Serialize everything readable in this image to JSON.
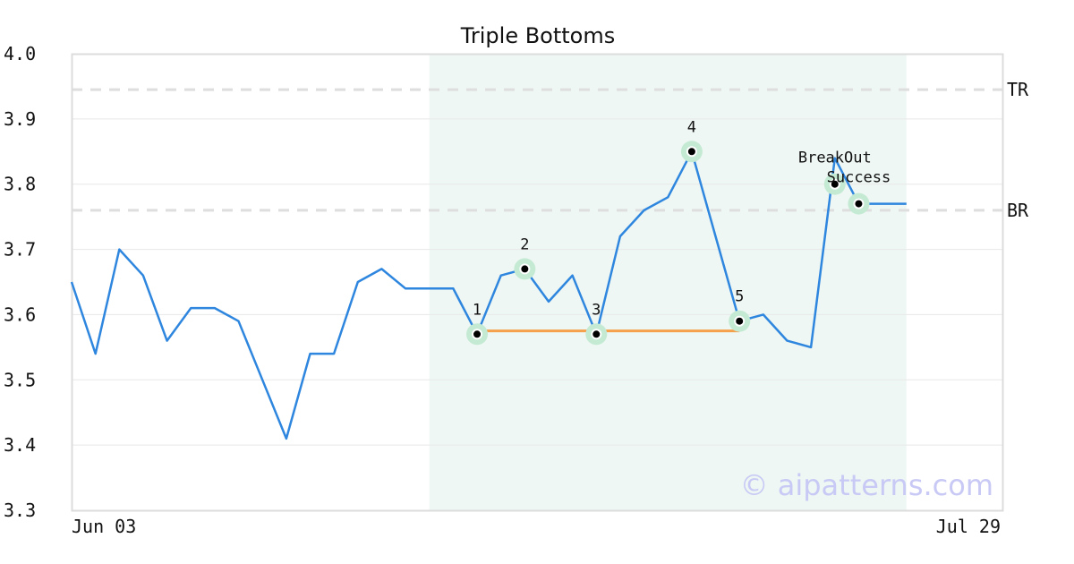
{
  "chart_data": {
    "type": "line",
    "title": "Triple Bottoms",
    "ylim": [
      3.3,
      4.0
    ],
    "yticks": [
      "3.3",
      "3.4",
      "3.5",
      "3.6",
      "3.7",
      "3.8",
      "3.9",
      "4.0"
    ],
    "xtick_labels": [
      "Jun 03",
      "Jul 29"
    ],
    "grid": true,
    "series": [
      {
        "values": [
          3.65,
          3.54,
          3.7,
          3.66,
          3.56,
          3.61,
          3.61,
          3.59,
          3.5,
          3.41,
          3.54,
          3.54,
          3.65,
          3.67,
          3.64,
          3.64,
          3.64,
          3.57,
          3.66,
          3.67,
          3.62,
          3.66,
          3.57,
          3.72,
          3.76,
          3.78,
          3.85,
          3.72,
          3.59,
          3.6,
          3.56,
          3.55,
          3.84,
          3.77,
          3.77,
          3.77
        ],
        "color": "#2e86de"
      }
    ],
    "pattern_region": {
      "start_index": 15,
      "end_index": 35,
      "color": "#eef7f3"
    },
    "pattern_points": [
      {
        "label": "1",
        "index": 17,
        "value": 3.57
      },
      {
        "label": "2",
        "index": 19,
        "value": 3.67
      },
      {
        "label": "3",
        "index": 22,
        "value": 3.57
      },
      {
        "label": "4",
        "index": 26,
        "value": 3.85
      },
      {
        "label": "5",
        "index": 28,
        "value": 3.59
      }
    ],
    "support_line": {
      "start_index": 17,
      "end_index": 28,
      "value": 3.575,
      "color": "#f5a04a"
    },
    "reference_lines": [
      {
        "label": "TR",
        "value": 3.945
      },
      {
        "label": "BR",
        "value": 3.76
      }
    ],
    "annotations": [
      {
        "text": "BreakOut",
        "index": 32,
        "value": 3.8
      },
      {
        "text": "Success",
        "index": 33,
        "value": 3.77
      }
    ],
    "watermark": "© aipatterns.com"
  }
}
